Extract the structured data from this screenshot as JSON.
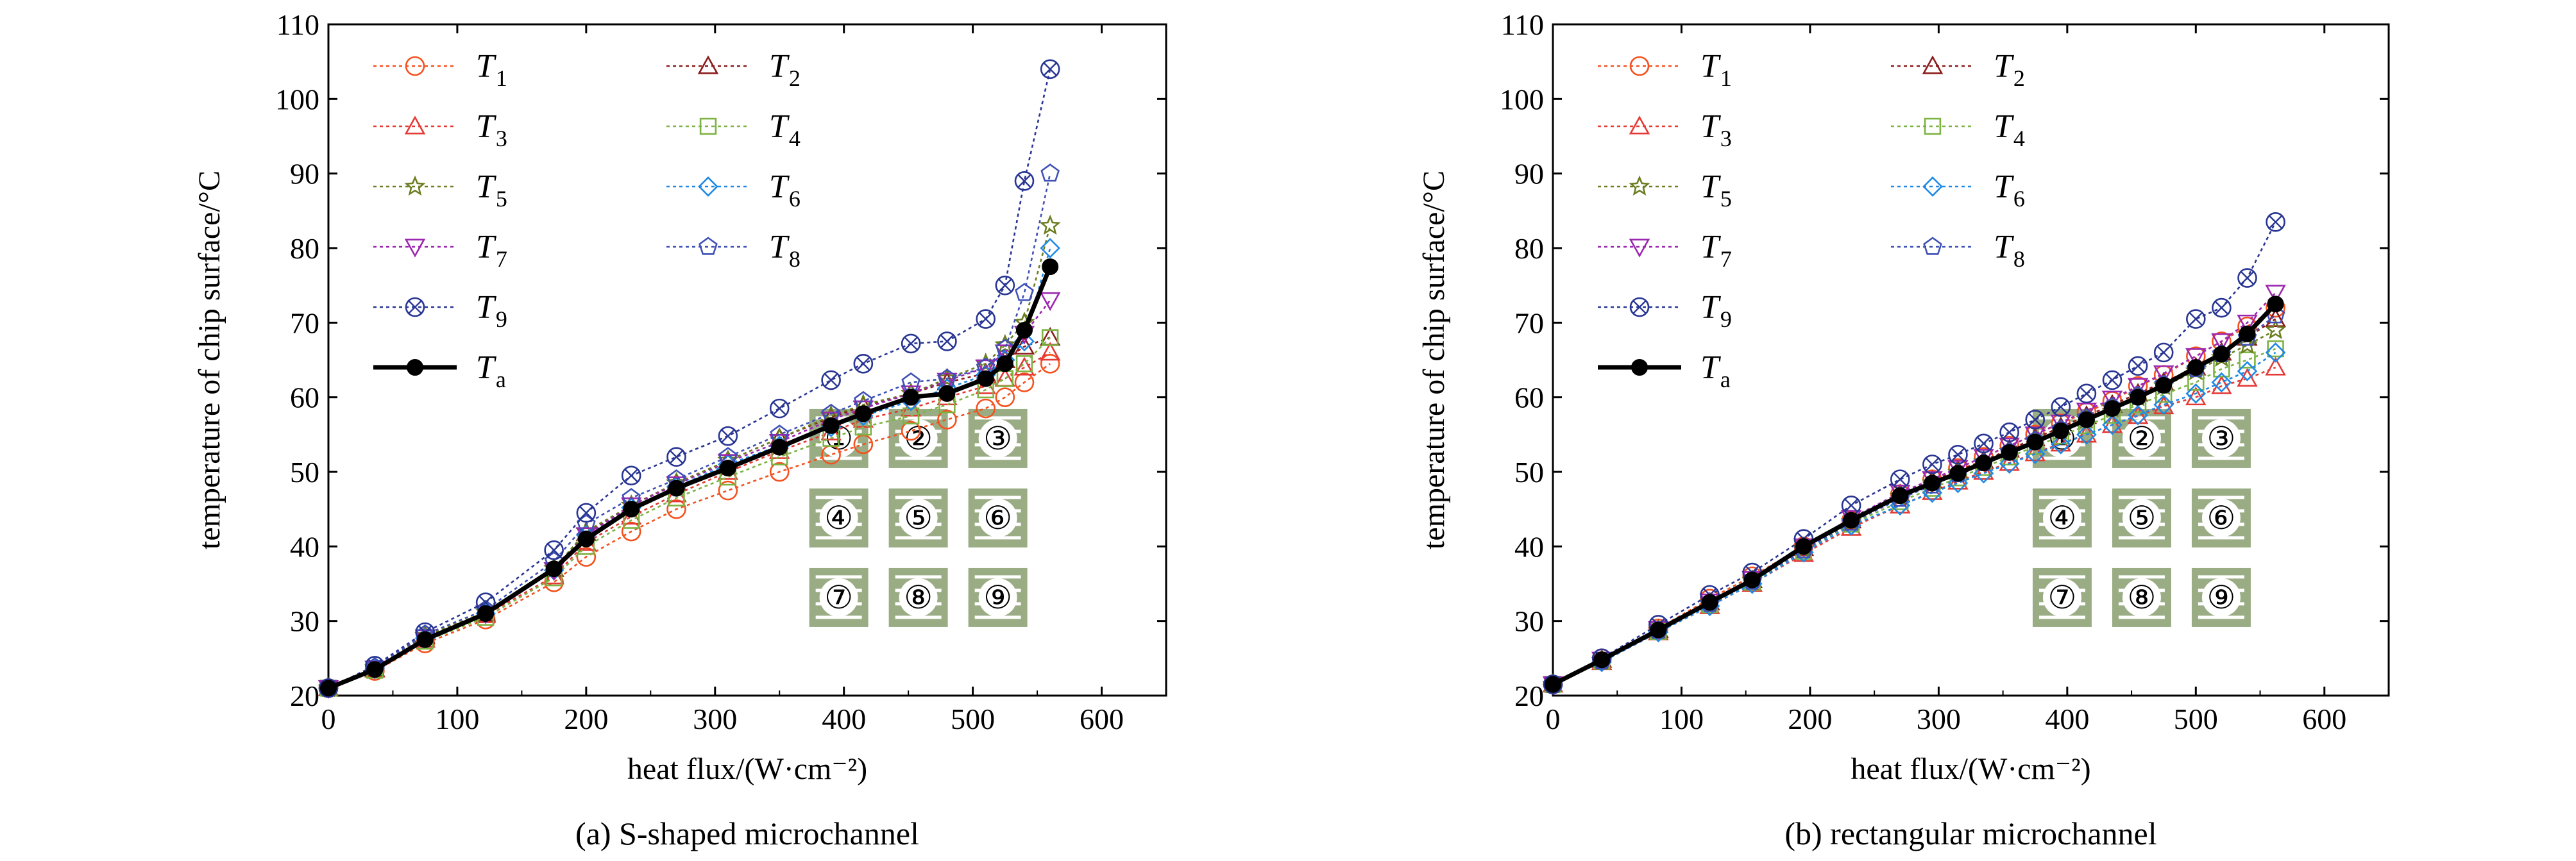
{
  "chart_data": [
    {
      "type": "line",
      "title": "",
      "caption": "(a) S-shaped microchannel",
      "xlabel": "heat flux/(W·cm⁻²)",
      "ylabel": "temperature of chip surface/°C",
      "xlim": [
        0,
        650
      ],
      "ylim": [
        20,
        110
      ],
      "xticks": [
        "0",
        "100",
        "200",
        "300",
        "400",
        "500",
        "600"
      ],
      "yticks": [
        "20",
        "30",
        "40",
        "50",
        "60",
        "70",
        "80",
        "90",
        "100",
        "110"
      ],
      "grid": false,
      "legend_position": "top-left",
      "x": [
        0,
        36,
        75,
        122,
        175,
        200,
        235,
        270,
        310,
        350,
        390,
        415,
        452,
        480,
        510,
        525,
        540,
        560
      ],
      "series": [
        {
          "sym": "T",
          "sub": "1",
          "marker": "circle",
          "color": "#f4511e",
          "values": [
            21,
            23.3,
            27,
            30.2,
            35.2,
            38.6,
            42,
            45,
            47.5,
            50,
            52.3,
            53.7,
            55.5,
            57,
            58.5,
            60,
            62,
            64.5
          ]
        },
        {
          "sym": "T",
          "sub": "2",
          "marker": "triangle",
          "color": "#8b1a1a",
          "values": [
            21,
            23.6,
            28,
            31,
            37,
            41.8,
            45.5,
            48.5,
            51.5,
            54.5,
            57.3,
            58.8,
            60.5,
            62,
            63.2,
            65,
            66.8,
            68
          ]
        },
        {
          "sym": "T",
          "sub": "3",
          "marker": "triangle",
          "color": "#e53935",
          "values": [
            21,
            23.5,
            27.5,
            30.8,
            36,
            40.5,
            44,
            47,
            50,
            52.8,
            55.3,
            57,
            58.5,
            60,
            61.5,
            62.5,
            64,
            66
          ]
        },
        {
          "sym": "T",
          "sub": "4",
          "marker": "square",
          "color": "#7cb342",
          "values": [
            21,
            23.4,
            27.3,
            30.5,
            35.8,
            40,
            43.5,
            46.5,
            49.3,
            52,
            54.5,
            56,
            57.5,
            59,
            61,
            62.5,
            64.5,
            68
          ]
        },
        {
          "sym": "T",
          "sub": "5",
          "marker": "star",
          "color": "#6b7d1f",
          "values": [
            21,
            23.7,
            28,
            31.2,
            37,
            42,
            45.5,
            48.5,
            51.5,
            54.5,
            57.5,
            59,
            60.5,
            62.5,
            64.5,
            67,
            70,
            83
          ]
        },
        {
          "sym": "T",
          "sub": "6",
          "marker": "diamond",
          "color": "#1e88e5",
          "values": [
            21,
            23.6,
            27.7,
            31,
            36.8,
            41.5,
            45.2,
            48,
            51,
            53.5,
            56,
            57.5,
            59.5,
            61.2,
            63,
            65,
            67.5,
            80
          ]
        },
        {
          "sym": "T",
          "sub": "7",
          "marker": "tri-down",
          "color": "#9c27b0",
          "values": [
            21,
            23.6,
            27.8,
            31,
            36.8,
            41.5,
            45.5,
            48.3,
            51.3,
            54,
            57,
            58.5,
            60.5,
            62.2,
            64,
            66,
            68.5,
            73
          ]
        },
        {
          "sym": "T",
          "sub": "8",
          "marker": "pentagon",
          "color": "#3f51b5",
          "values": [
            21,
            23.8,
            28.2,
            31.5,
            38,
            43,
            46.5,
            49,
            52,
            55,
            57.8,
            59.5,
            62,
            62.5,
            64,
            66.5,
            74,
            90
          ]
        },
        {
          "sym": "T",
          "sub": "9",
          "marker": "xcircle",
          "color": "#283593",
          "values": [
            21,
            24,
            28.5,
            32.5,
            39.5,
            44.5,
            49.5,
            52,
            54.8,
            58.5,
            62.3,
            64.5,
            67.2,
            67.5,
            70.5,
            75,
            89,
            104
          ]
        },
        {
          "sym": "T",
          "sub": "a",
          "marker": "filled-circle",
          "color": "#000000",
          "bold": true,
          "values": [
            21,
            23.5,
            27.5,
            31,
            37,
            41,
            45,
            47.8,
            50.5,
            53.3,
            56.2,
            57.8,
            60,
            60.5,
            62.5,
            64.5,
            69,
            77.5
          ]
        }
      ],
      "inset": {
        "labels": [
          "①",
          "②",
          "③",
          "④",
          "⑤",
          "⑥",
          "⑦",
          "⑧",
          "⑨"
        ],
        "fill": "#9aac84"
      }
    },
    {
      "type": "line",
      "title": "",
      "caption": "(b) rectangular microchannel",
      "xlabel": "heat flux/(W·cm⁻²)",
      "ylabel": "temperature of chip surface/°C",
      "xlim": [
        0,
        650
      ],
      "ylim": [
        20,
        110
      ],
      "xticks": [
        "0",
        "100",
        "200",
        "300",
        "400",
        "500",
        "600"
      ],
      "yticks": [
        "20",
        "30",
        "40",
        "50",
        "60",
        "70",
        "80",
        "90",
        "100",
        "110"
      ],
      "grid": false,
      "legend_position": "top-left",
      "x": [
        0,
        38,
        82,
        122,
        155,
        195,
        232,
        270,
        295,
        315,
        335,
        355,
        375,
        395,
        415,
        435,
        455,
        475,
        500,
        520,
        540,
        562
      ],
      "series": [
        {
          "sym": "T",
          "sub": "1",
          "marker": "circle",
          "color": "#f4511e",
          "values": [
            21.5,
            25,
            29,
            33,
            36,
            40,
            43.5,
            47,
            49,
            50.5,
            52,
            53.5,
            55,
            56.5,
            58,
            59.5,
            61.5,
            63,
            65.5,
            67.5,
            69.5,
            72
          ]
        },
        {
          "sym": "T",
          "sub": "2",
          "marker": "triangle",
          "color": "#8b1a1a",
          "values": [
            21.5,
            24.8,
            28.8,
            32.5,
            35.5,
            39.8,
            43.5,
            47,
            48.8,
            50.2,
            51.5,
            53,
            54.5,
            56,
            57.5,
            59,
            60.5,
            62,
            64,
            66,
            68,
            70.5
          ]
        },
        {
          "sym": "T",
          "sub": "3",
          "marker": "triangle",
          "color": "#e53935",
          "values": [
            21.5,
            24.5,
            28.5,
            32,
            35,
            39,
            42.5,
            45.5,
            47.3,
            48.7,
            50,
            51.2,
            52.5,
            53.8,
            55,
            56.3,
            57.5,
            58.8,
            60,
            61.5,
            62.5,
            64
          ]
        },
        {
          "sym": "T",
          "sub": "4",
          "marker": "square",
          "color": "#7cb342",
          "values": [
            21.5,
            24.6,
            28.6,
            32.2,
            35.2,
            39.3,
            43,
            46,
            47.8,
            49.2,
            50.6,
            52,
            53.4,
            54.8,
            56.2,
            57.6,
            59,
            60.4,
            62,
            63.8,
            65,
            66.5
          ]
        },
        {
          "sym": "T",
          "sub": "5",
          "marker": "star",
          "color": "#6b7d1f",
          "values": [
            21.5,
            24.7,
            28.7,
            32.4,
            35.4,
            39.6,
            43.3,
            46.7,
            48.5,
            49.9,
            51.3,
            52.7,
            54.1,
            55.5,
            57,
            58.5,
            60,
            61.5,
            63.5,
            65.3,
            67,
            69
          ]
        },
        {
          "sym": "T",
          "sub": "6",
          "marker": "diamond",
          "color": "#1e88e5",
          "values": [
            21.5,
            24.5,
            28.5,
            32,
            35,
            39.2,
            42.8,
            45.5,
            47.2,
            48.5,
            49.8,
            51.1,
            52.4,
            53.7,
            55,
            56.3,
            57.6,
            59,
            60.5,
            62,
            63.5,
            66
          ]
        },
        {
          "sym": "T",
          "sub": "7",
          "marker": "tri-down",
          "color": "#9c27b0",
          "values": [
            21.5,
            24.8,
            28.9,
            32.6,
            35.6,
            40,
            43.8,
            47.2,
            49,
            50.5,
            52,
            53.5,
            55,
            56.6,
            58.2,
            59.8,
            61.5,
            63.2,
            65.5,
            67.5,
            70,
            74
          ]
        },
        {
          "sym": "T",
          "sub": "8",
          "marker": "pentagon",
          "color": "#3f51b5",
          "values": [
            21.5,
            24.6,
            28.7,
            32.3,
            35.3,
            39.5,
            43.2,
            46.4,
            48.2,
            49.7,
            51.2,
            52.7,
            54.2,
            55.7,
            57.2,
            58.7,
            60.2,
            61.7,
            63.8,
            65.8,
            68,
            71
          ]
        },
        {
          "sym": "T",
          "sub": "9",
          "marker": "xcircle",
          "color": "#283593",
          "values": [
            21.5,
            25,
            29.5,
            33.5,
            36.5,
            41,
            45.5,
            49,
            51,
            52.3,
            53.8,
            55.3,
            57,
            58.7,
            60.5,
            62.3,
            64.2,
            66,
            70.5,
            72,
            76,
            83.5
          ]
        },
        {
          "sym": "T",
          "sub": "a",
          "marker": "filled-circle",
          "color": "#000000",
          "bold": true,
          "values": [
            21.5,
            24.8,
            28.8,
            32.5,
            35.5,
            40,
            43.5,
            46.8,
            48.5,
            49.8,
            51.2,
            52.6,
            54,
            55.5,
            57,
            58.5,
            60,
            61.6,
            64,
            65.8,
            68.5,
            72.5
          ]
        }
      ],
      "inset": {
        "labels": [
          "①",
          "②",
          "③",
          "④",
          "⑤",
          "⑥",
          "⑦",
          "⑧",
          "⑨"
        ],
        "fill": "#9aac84"
      }
    }
  ]
}
